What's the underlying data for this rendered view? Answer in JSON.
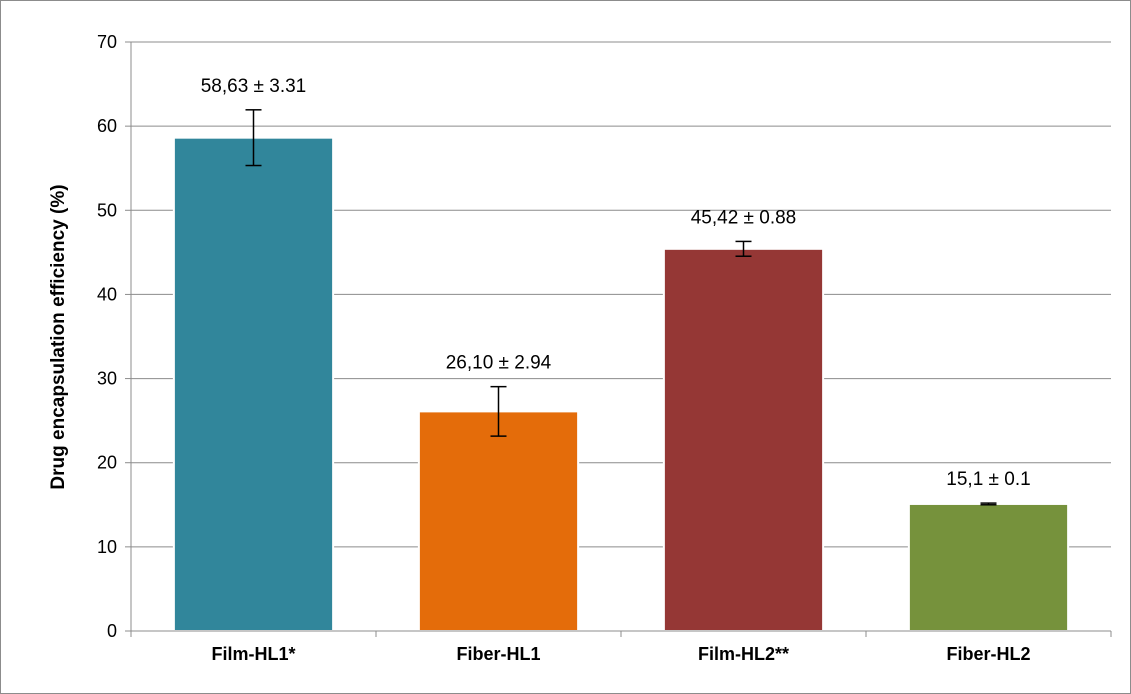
{
  "chart_data": {
    "type": "bar",
    "categories": [
      "Film-HL1*",
      "Fiber-HL1",
      "Film-HL2**",
      "Fiber-HL2"
    ],
    "values": [
      58.63,
      26.1,
      45.42,
      15.1
    ],
    "errors": [
      3.31,
      2.94,
      0.88,
      0.1
    ],
    "data_labels": [
      "58,63 ± 3.31",
      "26,10 ± 2.94",
      "45,42 ± 0.88",
      "15,1 ± 0.1"
    ],
    "colors": [
      "#31869b",
      "#e46c0a",
      "#953735",
      "#76923c"
    ],
    "title": "",
    "xlabel": "",
    "ylabel": "Drug encapsulation efficiency (%)",
    "ylim": [
      0,
      70
    ],
    "yticks": [
      0,
      10,
      20,
      30,
      40,
      50,
      60,
      70
    ],
    "grid": true,
    "legend": "none"
  }
}
